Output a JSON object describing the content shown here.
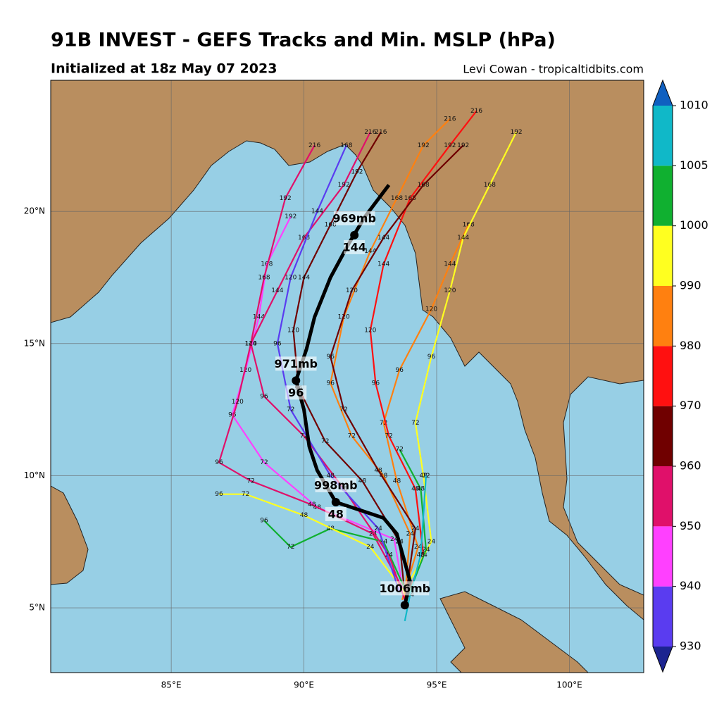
{
  "title": "91B INVEST - GEFS Tracks and Min. MSLP (hPa)",
  "subtitle": "Initialized at 18z May 07 2023",
  "credit": "Levi Cowan - tropicaltidbits.com",
  "map": {
    "xlim": [
      80.46,
      102.8
    ],
    "ylim": [
      2.55,
      24.96
    ],
    "xticks": [
      {
        "value": 85,
        "label": "85°E"
      },
      {
        "value": 90,
        "label": "90°E"
      },
      {
        "value": 95,
        "label": "95°E"
      },
      {
        "value": 100,
        "label": "100°E"
      }
    ],
    "yticks": [
      {
        "value": 5,
        "label": "5°N"
      },
      {
        "value": 10,
        "label": "10°N"
      },
      {
        "value": 15,
        "label": "15°N"
      },
      {
        "value": 20,
        "label": "20°N"
      }
    ],
    "hours": [
      24,
      48,
      72,
      96,
      120,
      144,
      168,
      192,
      216
    ],
    "tracks": [
      {
        "color": "#ff40ff",
        "lon": [
          93.8,
          93.4,
          90.5,
          88.5,
          87.3,
          87.8,
          88.3,
          88.6,
          89.5
        ],
        "lat": [
          5.3,
          7.6,
          8.8,
          10.5,
          12.3,
          14.0,
          16.0,
          18.0,
          19.8
        ]
      },
      {
        "color": "#e0106a",
        "lon": [
          93.9,
          92.6,
          90.3,
          88.0,
          86.8,
          87.5,
          88.0,
          88.5,
          89.3,
          90.4
        ],
        "lat": [
          5.4,
          7.8,
          8.9,
          9.8,
          10.5,
          12.8,
          15.0,
          17.5,
          20.5,
          22.5
        ]
      },
      {
        "color": "#700000",
        "lon": [
          93.8,
          93.6,
          92.2,
          90.8,
          89.8,
          89.6,
          90.0,
          91.0,
          92.0,
          92.9
        ],
        "lat": [
          5.5,
          7.5,
          9.8,
          11.3,
          13.3,
          15.5,
          17.5,
          19.5,
          21.5,
          23.0
        ]
      },
      {
        "color": "#ff8010",
        "lon": [
          93.7,
          94.3,
          93.5,
          93.0,
          93.6,
          94.8,
          95.5,
          96.2
        ],
        "lat": [
          5.3,
          7.3,
          9.8,
          12.0,
          14.0,
          16.3,
          18.0,
          19.5
        ]
      },
      {
        "color": "#ff1010",
        "lon": [
          93.8,
          94.5,
          94.2,
          93.2,
          92.7,
          92.5,
          93.0,
          94.0,
          95.5,
          96.5
        ],
        "lat": [
          5.2,
          7.0,
          9.5,
          11.5,
          13.5,
          15.5,
          18.0,
          20.5,
          22.5,
          23.8
        ]
      },
      {
        "color": "#10b030",
        "lon": [
          93.9,
          93.0,
          91.0,
          89.5,
          88.5
        ],
        "lat": [
          5.5,
          7.5,
          8.0,
          7.3,
          8.3
        ]
      },
      {
        "color": "#ffff20",
        "lon": [
          93.8,
          92.5,
          90.0,
          87.8,
          86.8
        ],
        "lat": [
          5.6,
          7.3,
          8.5,
          9.3,
          9.3
        ]
      },
      {
        "color": "#ff8010",
        "lon": [
          93.8,
          94.0,
          93.0,
          91.8,
          91.0,
          91.5,
          92.5,
          93.5,
          94.5,
          95.5
        ],
        "lat": [
          5.4,
          7.8,
          10.0,
          11.5,
          13.5,
          16.0,
          18.5,
          20.5,
          22.5,
          23.5
        ]
      },
      {
        "color": "#ffff20",
        "lon": [
          93.7,
          94.8,
          94.5,
          94.2,
          94.8,
          95.5,
          96.0,
          97.0,
          98.0
        ],
        "lat": [
          5.5,
          7.5,
          10.0,
          12.0,
          14.5,
          17.0,
          19.0,
          21.0,
          23.0
        ]
      },
      {
        "color": "#e0106a",
        "lon": [
          93.8,
          93.2,
          91.5,
          90.0,
          88.5,
          88.0,
          89.0,
          90.0,
          91.5,
          92.5
        ],
        "lat": [
          5.3,
          7.0,
          9.5,
          11.5,
          13.0,
          15.0,
          17.0,
          19.0,
          21.0,
          23.0
        ]
      },
      {
        "color": "#700000",
        "lon": [
          93.8,
          94.2,
          92.8,
          91.5,
          91.0,
          91.8,
          93.0,
          94.5,
          96.0
        ],
        "lat": [
          5.2,
          8.0,
          10.2,
          12.5,
          14.5,
          17.0,
          19.0,
          21.0,
          22.5
        ]
      },
      {
        "color": "#10b030",
        "lon": [
          93.9,
          94.6,
          94.4,
          93.6
        ],
        "lat": [
          5.4,
          7.2,
          9.5,
          11.0
        ]
      },
      {
        "color": "#10b8c8",
        "lon": [
          93.8,
          94.0,
          94.4,
          94.6
        ],
        "lat": [
          4.5,
          5.5,
          7.0,
          10.0
        ]
      },
      {
        "color": "#5a3cf0",
        "lon": [
          93.6,
          92.8,
          91.0,
          89.5,
          89.0,
          89.5,
          90.5,
          91.6
        ],
        "lat": [
          5.6,
          8.0,
          10.0,
          12.5,
          15.0,
          17.5,
          20.0,
          22.5
        ]
      }
    ],
    "mean_track": {
      "lon": [
        93.8,
        94.0,
        93.5,
        93.0,
        91.2,
        90.5,
        90.2,
        90.0,
        89.7,
        90.1,
        90.4,
        91.0,
        91.7,
        92.3,
        93.2
      ],
      "lat": [
        5.1,
        6.0,
        7.8,
        8.4,
        9.0,
        10.2,
        11.1,
        12.5,
        13.6,
        14.8,
        16.0,
        17.5,
        18.8,
        19.8,
        21.0
      ]
    },
    "markers": [
      {
        "label": "1006mb",
        "lon": 93.8,
        "lat": 5.1
      },
      {
        "label": "998mb",
        "hour": 48,
        "lon": 91.2,
        "lat": 9.0
      },
      {
        "label": "971mb",
        "hour": 96,
        "lon": 89.7,
        "lat": 13.6
      },
      {
        "label": "969mb",
        "hour": 144,
        "lon": 91.9,
        "lat": 19.1
      }
    ]
  },
  "colorbar": {
    "levels": [
      930,
      940,
      950,
      960,
      970,
      980,
      990,
      1000,
      1005,
      1010
    ],
    "colors": [
      "#5a3cf0",
      "#ff40ff",
      "#e0106a",
      "#700000",
      "#ff1010",
      "#ff8010",
      "#ffff20",
      "#10b030",
      "#10b8c8"
    ],
    "extend_colors": [
      "#1c2490",
      "#1060c0"
    ]
  }
}
